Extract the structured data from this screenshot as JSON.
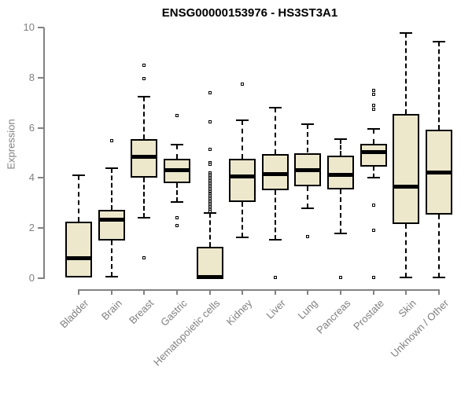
{
  "title": "ENSG00000153976 - HS3ST3A1",
  "colors": {
    "box_fill": "#EDE8CC",
    "box_stroke": "#000000",
    "axis": "#828282",
    "tick_label": "#808080",
    "title": "#000000",
    "background": "#ffffff"
  },
  "chart_data": {
    "type": "boxplot",
    "title": "ENSG00000153976 - HS3ST3A1",
    "xlabel": "",
    "ylabel": "Expression",
    "ylim": [
      0,
      10
    ],
    "yticks": [
      0,
      2,
      4,
      6,
      8,
      10
    ],
    "grid": false,
    "legend": "none",
    "categories": [
      "Bladder",
      "Brain",
      "Breast",
      "Gastric",
      "Hematopoietic cells",
      "Kidney",
      "Liver",
      "Lung",
      "Pancreas",
      "Prostate",
      "Skin",
      "Unknown / Other"
    ],
    "series": [
      {
        "name": "Bladder",
        "min": 0.03,
        "q1": 0.03,
        "median": 0.82,
        "q3": 2.25,
        "max": 4.1,
        "outliers": []
      },
      {
        "name": "Brain",
        "min": 0.05,
        "q1": 1.5,
        "median": 2.35,
        "q3": 2.72,
        "max": 4.4,
        "outliers": [
          5.5
        ]
      },
      {
        "name": "Breast",
        "min": 2.42,
        "q1": 4.0,
        "median": 4.85,
        "q3": 5.55,
        "max": 7.25,
        "outliers": [
          8.5,
          7.95,
          0.8
        ]
      },
      {
        "name": "Gastric",
        "min": 3.05,
        "q1": 3.8,
        "median": 4.33,
        "q3": 4.78,
        "max": 5.33,
        "outliers": [
          6.5,
          2.4,
          2.1
        ]
      },
      {
        "name": "Hematopoietic cells",
        "min": 0.0,
        "q1": 0.0,
        "median": 0.07,
        "q3": 1.25,
        "max": 2.6,
        "outliers": [
          7.4,
          6.25,
          5.15,
          4.62,
          4.55,
          4.2,
          4.13,
          4.06,
          4.0,
          3.94,
          3.88,
          3.82,
          3.76,
          3.7,
          3.64,
          3.58,
          3.52,
          3.46,
          3.4,
          3.34,
          3.28,
          3.22,
          3.16,
          3.1,
          3.04,
          2.98,
          2.92,
          2.86,
          2.8,
          2.74,
          2.68
        ]
      },
      {
        "name": "Kidney",
        "min": 1.63,
        "q1": 3.05,
        "median": 4.08,
        "q3": 4.75,
        "max": 6.3,
        "outliers": [
          7.75
        ]
      },
      {
        "name": "Liver",
        "min": 1.55,
        "q1": 3.5,
        "median": 4.17,
        "q3": 4.95,
        "max": 6.8,
        "outliers": [
          0.03
        ]
      },
      {
        "name": "Lung",
        "min": 2.8,
        "q1": 3.67,
        "median": 4.33,
        "q3": 5.0,
        "max": 6.15,
        "outliers": [
          1.65
        ]
      },
      {
        "name": "Pancreas",
        "min": 1.8,
        "q1": 3.53,
        "median": 4.14,
        "q3": 4.88,
        "max": 5.55,
        "outliers": [
          0.03
        ]
      },
      {
        "name": "Prostate",
        "min": 4.0,
        "q1": 4.45,
        "median": 5.05,
        "q3": 5.35,
        "max": 5.95,
        "outliers": [
          7.5,
          7.35,
          6.9,
          6.75,
          2.9,
          1.9,
          0.03
        ]
      },
      {
        "name": "Skin",
        "min": 0.03,
        "q1": 2.15,
        "median": 3.67,
        "q3": 6.55,
        "max": 9.78,
        "outliers": []
      },
      {
        "name": "Unknown / Other",
        "min": 0.03,
        "q1": 2.54,
        "median": 4.23,
        "q3": 5.92,
        "max": 9.44,
        "outliers": []
      }
    ]
  }
}
